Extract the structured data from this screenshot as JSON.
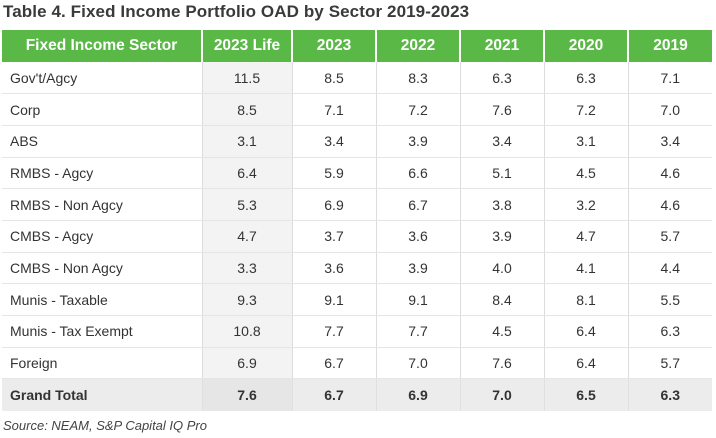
{
  "title": "Table 4. Fixed Income Portfolio OAD by Sector 2019-2023",
  "table": {
    "headers": [
      "Fixed Income Sector",
      "2023 Life",
      "2023",
      "2022",
      "2021",
      "2020",
      "2019"
    ],
    "rows": [
      [
        "Gov't/Agcy",
        "11.5",
        "8.5",
        "8.3",
        "6.3",
        "6.3",
        "7.1"
      ],
      [
        "Corp",
        "8.5",
        "7.1",
        "7.2",
        "7.6",
        "7.2",
        "7.0"
      ],
      [
        "ABS",
        "3.1",
        "3.4",
        "3.9",
        "3.4",
        "3.1",
        "3.4"
      ],
      [
        "RMBS - Agcy",
        "6.4",
        "5.9",
        "6.6",
        "5.1",
        "4.5",
        "4.6"
      ],
      [
        "RMBS - Non Agcy",
        "5.3",
        "6.9",
        "6.7",
        "3.8",
        "3.2",
        "4.6"
      ],
      [
        "CMBS - Agcy",
        "4.7",
        "3.7",
        "3.6",
        "3.9",
        "4.7",
        "5.7"
      ],
      [
        "CMBS - Non Agcy",
        "3.3",
        "3.6",
        "3.9",
        "4.0",
        "4.1",
        "4.4"
      ],
      [
        "Munis - Taxable",
        "9.3",
        "9.1",
        "9.1",
        "8.4",
        "8.1",
        "5.5"
      ],
      [
        "Munis - Tax Exempt",
        "10.8",
        "7.7",
        "7.7",
        "4.5",
        "6.4",
        "6.3"
      ],
      [
        "Foreign",
        "6.9",
        "6.7",
        "7.0",
        "7.6",
        "6.4",
        "5.7"
      ]
    ],
    "total": [
      "Grand Total",
      "7.6",
      "6.7",
      "6.9",
      "7.0",
      "6.5",
      "6.3"
    ]
  },
  "source": "Source: NEAM, S&P Capital IQ Pro",
  "colors": {
    "header_bg": "#5ab847",
    "header_text": "#ffffff",
    "life_col_bg": "#f3f3f3",
    "total_bg": "#ececec"
  }
}
